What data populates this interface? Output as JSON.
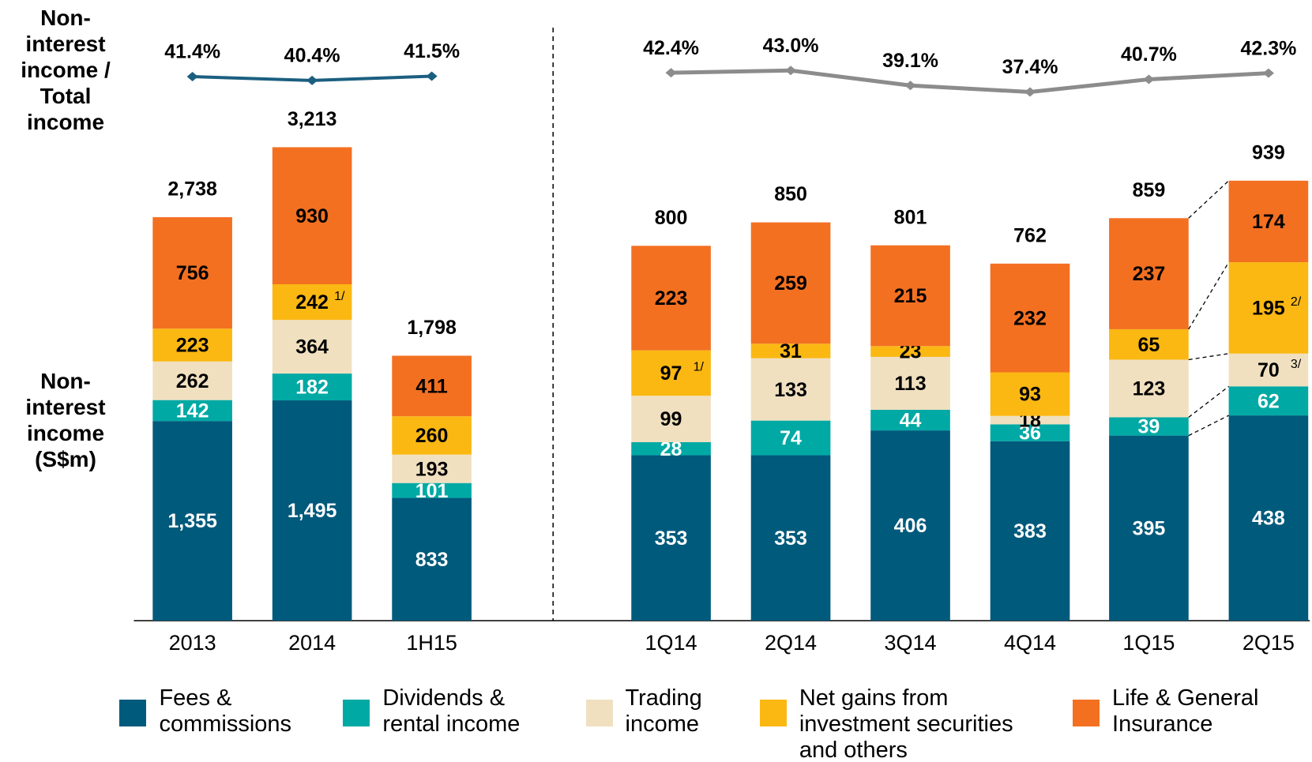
{
  "chart_data": {
    "type": "bar",
    "stacked": true,
    "y_title": "Non-interest income (S$m)",
    "ratio_title": "Non-interest income / Total income",
    "categories": [
      "2013",
      "2014",
      "1H15",
      "1Q14",
      "2Q14",
      "3Q14",
      "4Q14",
      "1Q15",
      "2Q15"
    ],
    "series": [
      {
        "name": "Fees & commissions",
        "color": "#005a7c",
        "label_color": "#ffffff",
        "values": [
          1355,
          1495,
          833,
          353,
          353,
          406,
          383,
          395,
          438
        ],
        "value_labels": [
          "1,355",
          "1,495",
          "833",
          "353",
          "353",
          "406",
          "383",
          "395",
          "438"
        ]
      },
      {
        "name": "Dividends & rental income",
        "color": "#00a9a4",
        "label_color": "#ffffff",
        "values": [
          142,
          182,
          101,
          28,
          74,
          44,
          36,
          39,
          62
        ]
      },
      {
        "name": "Trading income",
        "color": "#f0e0c0",
        "label_color": "#000000",
        "values": [
          262,
          364,
          193,
          99,
          133,
          113,
          18,
          123,
          70
        ]
      },
      {
        "name": "Net gains from investment securities and others",
        "color": "#fbb813",
        "label_color": "#000000",
        "values": [
          223,
          242,
          260,
          97,
          31,
          23,
          93,
          65,
          195
        ]
      },
      {
        "name": "Life & General Insurance",
        "color": "#f37021",
        "label_color": "#000000",
        "values": [
          756,
          930,
          411,
          223,
          259,
          215,
          232,
          237,
          174
        ]
      }
    ],
    "totals": {
      "values": [
        2738,
        3213,
        1798,
        800,
        850,
        801,
        762,
        859,
        939
      ],
      "value_labels": [
        "2,738",
        "3,213",
        "1,798",
        "800",
        "850",
        "801",
        "762",
        "859",
        "939"
      ]
    },
    "ratio": {
      "values": [
        41.4,
        40.4,
        41.5,
        42.4,
        43.0,
        39.1,
        37.4,
        40.7,
        42.3
      ],
      "value_labels": [
        "41.4%",
        "40.4%",
        "41.5%",
        "42.4%",
        "43.0%",
        "39.1%",
        "37.4%",
        "40.7%",
        "42.3%"
      ],
      "colors": [
        "#1b5f80",
        "#8c8c8c"
      ]
    },
    "annotations": [
      "1/",
      "1/",
      "2/",
      "3/"
    ]
  }
}
